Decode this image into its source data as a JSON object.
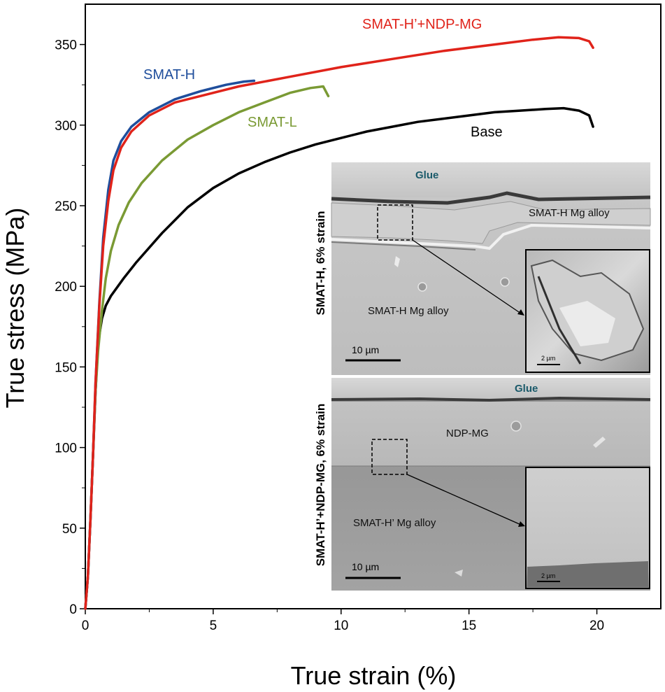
{
  "chart_data": {
    "type": "line",
    "xlabel": "True strain (%)",
    "ylabel": "True stress (MPa)",
    "xlim": [
      0,
      22.5
    ],
    "ylim": [
      0,
      375
    ],
    "x_ticks": [
      0,
      5,
      10,
      15,
      20
    ],
    "y_ticks": [
      0,
      50,
      100,
      150,
      200,
      250,
      300,
      350
    ],
    "grid": false,
    "series": [
      {
        "name": "Base",
        "color": "#000000",
        "points": [
          [
            0,
            0
          ],
          [
            0.1,
            20
          ],
          [
            0.2,
            55
          ],
          [
            0.3,
            95
          ],
          [
            0.4,
            135
          ],
          [
            0.5,
            165
          ],
          [
            0.65,
            180
          ],
          [
            0.8,
            188
          ],
          [
            1,
            194
          ],
          [
            1.5,
            205
          ],
          [
            2,
            215
          ],
          [
            3,
            233
          ],
          [
            4,
            249
          ],
          [
            5,
            261
          ],
          [
            6,
            270
          ],
          [
            7,
            277
          ],
          [
            8,
            283
          ],
          [
            9,
            288
          ],
          [
            10,
            292
          ],
          [
            11,
            296
          ],
          [
            12,
            299
          ],
          [
            13,
            302
          ],
          [
            14,
            304
          ],
          [
            15,
            306
          ],
          [
            16,
            308
          ],
          [
            17,
            309
          ],
          [
            18,
            310
          ],
          [
            18.7,
            310.5
          ],
          [
            19.3,
            309
          ],
          [
            19.7,
            306
          ],
          [
            19.85,
            299
          ]
        ]
      },
      {
        "name": "SMAT-L",
        "color": "#7a9a34",
        "points": [
          [
            0,
            0
          ],
          [
            0.1,
            20
          ],
          [
            0.2,
            55
          ],
          [
            0.3,
            95
          ],
          [
            0.4,
            135
          ],
          [
            0.5,
            160
          ],
          [
            0.65,
            185
          ],
          [
            0.8,
            205
          ],
          [
            1,
            222
          ],
          [
            1.3,
            238
          ],
          [
            1.7,
            252
          ],
          [
            2.2,
            264
          ],
          [
            3,
            278
          ],
          [
            4,
            291
          ],
          [
            5,
            300
          ],
          [
            6,
            308
          ],
          [
            7,
            314
          ],
          [
            8,
            320
          ],
          [
            8.8,
            323
          ],
          [
            9.3,
            324
          ],
          [
            9.5,
            318
          ]
        ]
      },
      {
        "name": "SMAT-H",
        "color": "#1f4e9c",
        "points": [
          [
            0,
            0
          ],
          [
            0.1,
            20
          ],
          [
            0.2,
            55
          ],
          [
            0.3,
            95
          ],
          [
            0.4,
            140
          ],
          [
            0.55,
            190
          ],
          [
            0.7,
            230
          ],
          [
            0.9,
            260
          ],
          [
            1.1,
            278
          ],
          [
            1.4,
            290
          ],
          [
            1.8,
            299
          ],
          [
            2.5,
            308
          ],
          [
            3.5,
            316
          ],
          [
            4.5,
            321
          ],
          [
            5.5,
            325
          ],
          [
            6.2,
            327
          ],
          [
            6.6,
            327.5
          ]
        ]
      },
      {
        "name": "SMAT-H’+NDP-MG",
        "color": "#e0231a",
        "points": [
          [
            0,
            0
          ],
          [
            0.1,
            20
          ],
          [
            0.2,
            55
          ],
          [
            0.3,
            95
          ],
          [
            0.4,
            140
          ],
          [
            0.55,
            188
          ],
          [
            0.7,
            225
          ],
          [
            0.9,
            253
          ],
          [
            1.1,
            272
          ],
          [
            1.4,
            286
          ],
          [
            1.8,
            296
          ],
          [
            2.5,
            306
          ],
          [
            3.5,
            314
          ],
          [
            5,
            320
          ],
          [
            6,
            324
          ],
          [
            8,
            330
          ],
          [
            10,
            336
          ],
          [
            12,
            341
          ],
          [
            14,
            346
          ],
          [
            16,
            350
          ],
          [
            17.5,
            353
          ],
          [
            18.5,
            354.5
          ],
          [
            19.3,
            354
          ],
          [
            19.7,
            352
          ],
          [
            19.85,
            348
          ]
        ]
      }
    ],
    "annotations": {
      "smat_h": "SMAT-H",
      "smat_hp_ndp": "SMAT-H’+NDP-MG",
      "smat_l": "SMAT-L",
      "base": "Base"
    }
  },
  "inset_panels": {
    "top": {
      "side_label": "SMAT-H, 6% strain",
      "glue_label": "Glue",
      "region_label_upper": "SMAT-H Mg alloy",
      "region_label_lower": "SMAT-H Mg alloy",
      "scale_bar_main": "10 µm",
      "scale_bar_zoom": "2 µm"
    },
    "bottom": {
      "side_label": "SMAT-H’+NDP-MG, 6% strain",
      "glue_label": "Glue",
      "coating_label": "NDP-MG",
      "substrate_label": "SMAT-H’ Mg alloy",
      "scale_bar_main": "10 µm",
      "scale_bar_zoom": "2 µm"
    }
  }
}
